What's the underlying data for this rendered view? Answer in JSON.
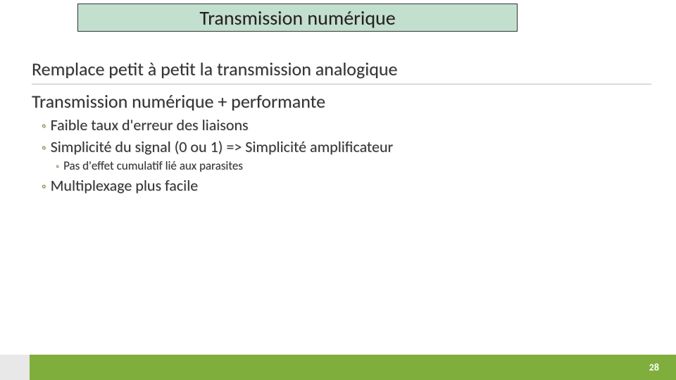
{
  "title": "Transmission numérique",
  "lines": {
    "main1": "Remplace petit à petit la transmission analogique",
    "main2": "Transmission numérique + performante",
    "bullet1": "Faible taux d'erreur des liaisons",
    "bullet2": "Simplicité du signal (0 ou 1) => Simplicité amplificateur",
    "subbullet": "Pas d'effet cumulatif lié aux parasites",
    "bullet3": "Multiplexage plus facile"
  },
  "page_number": "28",
  "colors": {
    "title_bg": "#c3e0cf",
    "footer_green": "#7fae3c",
    "bullet_mark": "#6b8e3d"
  }
}
